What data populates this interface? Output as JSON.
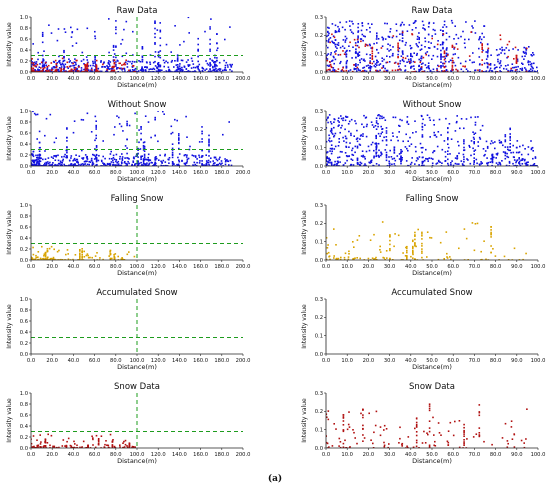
{
  "caption": "(a)",
  "colors": {
    "raw_blue": "#1010e0",
    "raw_red": "#cc1010",
    "falling_gold": "#d9a400",
    "snow_red": "#b01010",
    "threshold_green": "#1e9c1e"
  },
  "chart_data": [
    {
      "type": "scatter",
      "title": "Raw Data",
      "xlabel": "Distance(m)",
      "ylabel": "Intensity value",
      "xlim": [
        0,
        200
      ],
      "ylim": [
        0,
        1.0
      ],
      "xticks": [
        "0.0",
        "20.0",
        "40.0",
        "60.0",
        "80.0",
        "100.0",
        "120.0",
        "140.0",
        "160.0",
        "180.0",
        "200.0"
      ],
      "yticks": [
        "0.0",
        "0.2",
        "0.4",
        "0.6",
        "0.8",
        "1.0"
      ],
      "threshold_lines": {
        "y": 0.3,
        "x": 100
      },
      "series": [
        {
          "color": "#1010e0",
          "density": "dense",
          "x_max": 190
        },
        {
          "color": "#cc1010",
          "density": "sparse",
          "x_max": 100
        }
      ]
    },
    {
      "type": "scatter",
      "title": "Raw Data",
      "xlabel": "Distance(m)",
      "ylabel": "Intensity value",
      "xlim": [
        0,
        100
      ],
      "ylim": [
        0,
        0.3
      ],
      "xticks": [
        "0.0",
        "10.0",
        "20.0",
        "30.0",
        "40.0",
        "50.0",
        "60.0",
        "70.0",
        "80.0",
        "90.0",
        "100.0"
      ],
      "yticks": [
        "0.0",
        "0.1",
        "0.2",
        "0.3"
      ],
      "series": [
        {
          "color": "#1010e0",
          "density": "dense",
          "x_max": 100
        },
        {
          "color": "#cc1010",
          "density": "sparse",
          "x_max": 95
        }
      ]
    },
    {
      "type": "scatter",
      "title": "Without Snow",
      "xlabel": "Distance(m)",
      "ylabel": "Intensity value",
      "xlim": [
        0,
        200
      ],
      "ylim": [
        0,
        1.0
      ],
      "xticks": [
        "0.0",
        "20.0",
        "40.0",
        "60.0",
        "80.0",
        "100.0",
        "120.0",
        "140.0",
        "160.0",
        "180.0",
        "200.0"
      ],
      "yticks": [
        "0.0",
        "0.2",
        "0.4",
        "0.6",
        "0.8",
        "1.0"
      ],
      "threshold_lines": {
        "y": 0.3,
        "x": 100
      },
      "series": [
        {
          "color": "#1010e0",
          "density": "dense",
          "x_max": 190
        }
      ]
    },
    {
      "type": "scatter",
      "title": "Without Snow",
      "xlabel": "Distance(m)",
      "ylabel": "Intensity value",
      "xlim": [
        0,
        100
      ],
      "ylim": [
        0,
        0.3
      ],
      "xticks": [
        "0.0",
        "10.0",
        "20.0",
        "30.0",
        "40.0",
        "50.0",
        "60.0",
        "70.0",
        "80.0",
        "90.0",
        "100.0"
      ],
      "yticks": [
        "0.0",
        "0.1",
        "0.2",
        "0.3"
      ],
      "series": [
        {
          "color": "#1010e0",
          "density": "dense",
          "x_max": 100
        }
      ]
    },
    {
      "type": "scatter",
      "title": "Falling Snow",
      "xlabel": "Distance(m)",
      "ylabel": "Intensity value",
      "xlim": [
        0,
        200
      ],
      "ylim": [
        0,
        1.0
      ],
      "xticks": [
        "0.0",
        "20.0",
        "40.0",
        "60.0",
        "80.0",
        "100.0",
        "120.0",
        "140.0",
        "160.0",
        "180.0",
        "200.0"
      ],
      "yticks": [
        "0.0",
        "0.2",
        "0.4",
        "0.6",
        "0.8",
        "1.0"
      ],
      "threshold_lines": {
        "y": 0.3,
        "x": 100
      },
      "series": [
        {
          "color": "#d9a400",
          "density": "sparse",
          "x_max": 100
        }
      ]
    },
    {
      "type": "scatter",
      "title": "Falling Snow",
      "xlabel": "Distance(m)",
      "ylabel": "Intensity value",
      "xlim": [
        0,
        100
      ],
      "ylim": [
        0,
        0.3
      ],
      "xticks": [
        "0.0",
        "10.0",
        "20.0",
        "30.0",
        "40.0",
        "50.0",
        "60.0",
        "70.0",
        "80.0",
        "90.0",
        "100.0"
      ],
      "yticks": [
        "0.0",
        "0.1",
        "0.2",
        "0.3"
      ],
      "series": [
        {
          "color": "#d9a400",
          "density": "sparse",
          "x_max": 95
        }
      ]
    },
    {
      "type": "scatter",
      "title": "Accumulated Snow",
      "xlabel": "Distance(m)",
      "ylabel": "Intensity value",
      "xlim": [
        0,
        200
      ],
      "ylim": [
        0,
        1.0
      ],
      "xticks": [
        "0.0",
        "20.0",
        "40.0",
        "60.0",
        "80.0",
        "100.0",
        "120.0",
        "140.0",
        "160.0",
        "180.0",
        "200.0"
      ],
      "yticks": [
        "0.0",
        "0.2",
        "0.4",
        "0.6",
        "0.8",
        "1.0"
      ],
      "threshold_lines": {
        "y": 0.3,
        "x": 100
      },
      "series": []
    },
    {
      "type": "scatter",
      "title": "Accumulated Snow",
      "xlabel": "Distance(m)",
      "ylabel": "Intensity value",
      "xlim": [
        0,
        100
      ],
      "ylim": [
        0,
        0.3
      ],
      "xticks": [
        "0.0",
        "10.0",
        "20.0",
        "30.0",
        "40.0",
        "50.0",
        "60.0",
        "70.0",
        "80.0",
        "90.0",
        "100.0"
      ],
      "yticks": [
        "0.0",
        "0.1",
        "0.2",
        "0.3"
      ],
      "series": []
    },
    {
      "type": "scatter",
      "title": "Snow Data",
      "xlabel": "Distance(m)",
      "ylabel": "Intensity value",
      "xlim": [
        0,
        200
      ],
      "ylim": [
        0,
        1.0
      ],
      "xticks": [
        "0.0",
        "20.0",
        "40.0",
        "60.0",
        "80.0",
        "100.0",
        "120.0",
        "140.0",
        "160.0",
        "180.0",
        "200.0"
      ],
      "yticks": [
        "0.0",
        "0.2",
        "0.4",
        "0.6",
        "0.8",
        "1.0"
      ],
      "threshold_lines": {
        "y": 0.3,
        "x": 100
      },
      "series": [
        {
          "color": "#b01010",
          "density": "sparse",
          "x_max": 100
        }
      ]
    },
    {
      "type": "scatter",
      "title": "Snow Data",
      "xlabel": "Distance(m)",
      "ylabel": "Intensity value",
      "xlim": [
        0,
        100
      ],
      "ylim": [
        0,
        0.3
      ],
      "xticks": [
        "0.0",
        "10.0",
        "20.0",
        "30.0",
        "40.0",
        "50.0",
        "60.0",
        "70.0",
        "80.0",
        "90.0",
        "100.0"
      ],
      "yticks": [
        "0.0",
        "0.1",
        "0.2",
        "0.3"
      ],
      "series": [
        {
          "color": "#b01010",
          "density": "sparse",
          "x_max": 95
        }
      ]
    }
  ]
}
